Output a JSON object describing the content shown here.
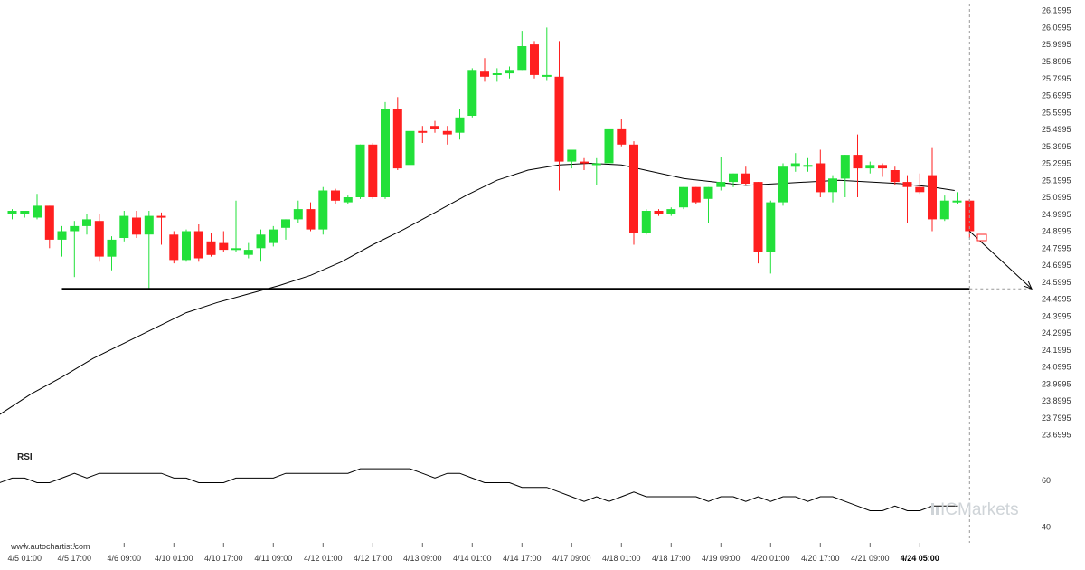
{
  "chart_data": {
    "type": "candlestick",
    "y_ticks": [
      "26.1995",
      "26.0995",
      "25.9995",
      "25.8995",
      "25.7995",
      "25.6995",
      "25.5995",
      "25.4995",
      "25.3995",
      "25.2995",
      "25.1995",
      "25.0995",
      "24.9995",
      "24.8995",
      "24.7995",
      "24.6995",
      "24.5995",
      "24.4995",
      "24.3995",
      "24.2995",
      "24.1995",
      "24.0995",
      "23.9995",
      "23.8995",
      "23.7995",
      "23.6995"
    ],
    "ylim": [
      23.65,
      26.23
    ],
    "x_ticks": [
      {
        "label": "4/5 01:00",
        "index": 1
      },
      {
        "label": "4/5 17:00",
        "index": 5
      },
      {
        "label": "4/6 09:00",
        "index": 9
      },
      {
        "label": "4/10 01:00",
        "index": 13
      },
      {
        "label": "4/10 17:00",
        "index": 17
      },
      {
        "label": "4/11 09:00",
        "index": 21
      },
      {
        "label": "4/12 01:00",
        "index": 25
      },
      {
        "label": "4/12 17:00",
        "index": 29
      },
      {
        "label": "4/13 09:00",
        "index": 33
      },
      {
        "label": "4/14 01:00",
        "index": 37
      },
      {
        "label": "4/14 17:00",
        "index": 41
      },
      {
        "label": "4/17 09:00",
        "index": 45
      },
      {
        "label": "4/18 01:00",
        "index": 49
      },
      {
        "label": "4/18 17:00",
        "index": 53
      },
      {
        "label": "4/19 09:00",
        "index": 57
      },
      {
        "label": "4/20 01:00",
        "index": 61
      },
      {
        "label": "4/20 17:00",
        "index": 65
      },
      {
        "label": "4/21 09:00",
        "index": 69
      },
      {
        "label": "4/24 05:00",
        "index": 73,
        "bold": true
      }
    ],
    "candles": [
      {
        "o": 25.0,
        "h": 25.03,
        "l": 24.97,
        "c": 25.02
      },
      {
        "o": 25.0,
        "h": 25.02,
        "l": 24.98,
        "c": 25.02
      },
      {
        "o": 24.98,
        "h": 25.12,
        "l": 24.97,
        "c": 25.05
      },
      {
        "o": 25.05,
        "h": 25.05,
        "l": 24.8,
        "c": 24.85
      },
      {
        "o": 24.85,
        "h": 24.93,
        "l": 24.75,
        "c": 24.9
      },
      {
        "o": 24.9,
        "h": 24.96,
        "l": 24.63,
        "c": 24.93
      },
      {
        "o": 24.93,
        "h": 25.0,
        "l": 24.88,
        "c": 24.97
      },
      {
        "o": 24.96,
        "h": 25.0,
        "l": 24.72,
        "c": 24.75
      },
      {
        "o": 24.75,
        "h": 24.87,
        "l": 24.67,
        "c": 24.85
      },
      {
        "o": 24.86,
        "h": 25.02,
        "l": 24.84,
        "c": 24.99
      },
      {
        "o": 24.98,
        "h": 25.02,
        "l": 24.86,
        "c": 24.88
      },
      {
        "o": 24.88,
        "h": 25.02,
        "l": 24.56,
        "c": 24.99
      },
      {
        "o": 24.99,
        "h": 25.01,
        "l": 24.82,
        "c": 24.98
      },
      {
        "o": 24.88,
        "h": 24.9,
        "l": 24.71,
        "c": 24.73
      },
      {
        "o": 24.73,
        "h": 24.91,
        "l": 24.72,
        "c": 24.9
      },
      {
        "o": 24.9,
        "h": 24.94,
        "l": 24.72,
        "c": 24.74
      },
      {
        "o": 24.84,
        "h": 24.89,
        "l": 24.75,
        "c": 24.76
      },
      {
        "o": 24.83,
        "h": 24.9,
        "l": 24.78,
        "c": 24.79
      },
      {
        "o": 24.8,
        "h": 25.08,
        "l": 24.78,
        "c": 24.8
      },
      {
        "o": 24.76,
        "h": 24.83,
        "l": 24.74,
        "c": 24.79
      },
      {
        "o": 24.8,
        "h": 24.91,
        "l": 24.72,
        "c": 24.88
      },
      {
        "o": 24.83,
        "h": 24.93,
        "l": 24.81,
        "c": 24.91
      },
      {
        "o": 24.92,
        "h": 24.97,
        "l": 24.85,
        "c": 24.97
      },
      {
        "o": 24.97,
        "h": 25.08,
        "l": 24.95,
        "c": 25.03
      },
      {
        "o": 25.03,
        "h": 25.07,
        "l": 24.9,
        "c": 24.91
      },
      {
        "o": 24.91,
        "h": 25.16,
        "l": 24.88,
        "c": 25.14
      },
      {
        "o": 25.14,
        "h": 25.15,
        "l": 25.06,
        "c": 25.08
      },
      {
        "o": 25.07,
        "h": 25.11,
        "l": 25.06,
        "c": 25.1
      },
      {
        "o": 25.1,
        "h": 25.41,
        "l": 25.09,
        "c": 25.41
      },
      {
        "o": 25.41,
        "h": 25.42,
        "l": 25.09,
        "c": 25.1
      },
      {
        "o": 25.1,
        "h": 25.66,
        "l": 25.09,
        "c": 25.62
      },
      {
        "o": 25.62,
        "h": 25.69,
        "l": 25.26,
        "c": 25.27
      },
      {
        "o": 25.29,
        "h": 25.54,
        "l": 25.28,
        "c": 25.49
      },
      {
        "o": 25.49,
        "h": 25.52,
        "l": 25.42,
        "c": 25.48
      },
      {
        "o": 25.52,
        "h": 25.55,
        "l": 25.48,
        "c": 25.5
      },
      {
        "o": 25.49,
        "h": 25.52,
        "l": 25.41,
        "c": 25.47
      },
      {
        "o": 25.48,
        "h": 25.62,
        "l": 25.44,
        "c": 25.57
      },
      {
        "o": 25.58,
        "h": 25.86,
        "l": 25.57,
        "c": 25.85
      },
      {
        "o": 25.84,
        "h": 25.92,
        "l": 25.78,
        "c": 25.81
      },
      {
        "o": 25.83,
        "h": 25.86,
        "l": 25.78,
        "c": 25.83
      },
      {
        "o": 25.83,
        "h": 25.87,
        "l": 25.8,
        "c": 25.85
      },
      {
        "o": 25.85,
        "h": 26.08,
        "l": 25.85,
        "c": 25.99
      },
      {
        "o": 26.0,
        "h": 26.02,
        "l": 25.8,
        "c": 25.82
      },
      {
        "o": 25.82,
        "h": 26.1,
        "l": 25.79,
        "c": 25.82
      },
      {
        "o": 25.81,
        "h": 26.02,
        "l": 25.14,
        "c": 25.31
      },
      {
        "o": 25.31,
        "h": 25.37,
        "l": 25.27,
        "c": 25.38
      },
      {
        "o": 25.31,
        "h": 25.33,
        "l": 25.26,
        "c": 25.3
      },
      {
        "o": 25.3,
        "h": 25.33,
        "l": 25.17,
        "c": 25.3
      },
      {
        "o": 25.3,
        "h": 25.59,
        "l": 25.28,
        "c": 25.5
      },
      {
        "o": 25.5,
        "h": 25.56,
        "l": 25.4,
        "c": 25.41
      },
      {
        "o": 25.41,
        "h": 25.43,
        "l": 24.82,
        "c": 24.89
      },
      {
        "o": 24.89,
        "h": 25.03,
        "l": 24.88,
        "c": 25.02
      },
      {
        "o": 25.02,
        "h": 25.03,
        "l": 24.99,
        "c": 25.0
      },
      {
        "o": 25.0,
        "h": 25.04,
        "l": 24.99,
        "c": 25.03
      },
      {
        "o": 25.04,
        "h": 25.16,
        "l": 25.03,
        "c": 25.16
      },
      {
        "o": 25.16,
        "h": 25.16,
        "l": 25.06,
        "c": 25.07
      },
      {
        "o": 25.09,
        "h": 25.16,
        "l": 24.95,
        "c": 25.16
      },
      {
        "o": 25.16,
        "h": 25.34,
        "l": 25.14,
        "c": 25.19
      },
      {
        "o": 25.19,
        "h": 25.24,
        "l": 25.16,
        "c": 25.24
      },
      {
        "o": 25.24,
        "h": 25.28,
        "l": 25.17,
        "c": 25.18
      },
      {
        "o": 25.19,
        "h": 25.19,
        "l": 24.71,
        "c": 24.78
      },
      {
        "o": 24.78,
        "h": 25.08,
        "l": 24.65,
        "c": 25.07
      },
      {
        "o": 25.07,
        "h": 25.3,
        "l": 25.05,
        "c": 25.28
      },
      {
        "o": 25.28,
        "h": 25.36,
        "l": 25.25,
        "c": 25.3
      },
      {
        "o": 25.28,
        "h": 25.33,
        "l": 25.25,
        "c": 25.29
      },
      {
        "o": 25.3,
        "h": 25.38,
        "l": 25.1,
        "c": 25.13
      },
      {
        "o": 25.13,
        "h": 25.23,
        "l": 25.07,
        "c": 25.21
      },
      {
        "o": 25.21,
        "h": 25.35,
        "l": 25.1,
        "c": 25.35
      },
      {
        "o": 25.35,
        "h": 25.47,
        "l": 25.1,
        "c": 25.27
      },
      {
        "o": 25.27,
        "h": 25.31,
        "l": 25.24,
        "c": 25.29
      },
      {
        "o": 25.29,
        "h": 25.3,
        "l": 25.22,
        "c": 25.27
      },
      {
        "o": 25.26,
        "h": 25.28,
        "l": 25.17,
        "c": 25.19
      },
      {
        "o": 25.19,
        "h": 25.23,
        "l": 24.95,
        "c": 25.16
      },
      {
        "o": 25.16,
        "h": 25.24,
        "l": 25.12,
        "c": 25.13
      },
      {
        "o": 25.23,
        "h": 25.39,
        "l": 24.9,
        "c": 24.97
      },
      {
        "o": 24.97,
        "h": 25.11,
        "l": 24.96,
        "c": 25.08
      },
      {
        "o": 25.08,
        "h": 25.13,
        "l": 25.06,
        "c": 25.08
      },
      {
        "o": 25.08,
        "h": 25.09,
        "l": 24.86,
        "c": 24.9
      }
    ],
    "moving_average": [
      {
        "i": -1.0,
        "v": 23.82
      },
      {
        "i": 1.5,
        "v": 23.94
      },
      {
        "i": 4.0,
        "v": 24.04
      },
      {
        "i": 6.5,
        "v": 24.15
      },
      {
        "i": 9.0,
        "v": 24.24
      },
      {
        "i": 11.5,
        "v": 24.33
      },
      {
        "i": 14.0,
        "v": 24.42
      },
      {
        "i": 16.5,
        "v": 24.48
      },
      {
        "i": 19.0,
        "v": 24.53
      },
      {
        "i": 21.5,
        "v": 24.58
      },
      {
        "i": 24.0,
        "v": 24.64
      },
      {
        "i": 26.5,
        "v": 24.72
      },
      {
        "i": 29.0,
        "v": 24.82
      },
      {
        "i": 31.5,
        "v": 24.91
      },
      {
        "i": 34.0,
        "v": 25.01
      },
      {
        "i": 36.5,
        "v": 25.11
      },
      {
        "i": 39.0,
        "v": 25.2
      },
      {
        "i": 41.5,
        "v": 25.26
      },
      {
        "i": 44.0,
        "v": 25.29
      },
      {
        "i": 46.5,
        "v": 25.3
      },
      {
        "i": 49.0,
        "v": 25.29
      },
      {
        "i": 51.5,
        "v": 25.25
      },
      {
        "i": 54.0,
        "v": 25.21
      },
      {
        "i": 56.5,
        "v": 25.19
      },
      {
        "i": 59.0,
        "v": 25.17
      },
      {
        "i": 61.5,
        "v": 25.18
      },
      {
        "i": 64.0,
        "v": 25.19
      },
      {
        "i": 66.5,
        "v": 25.2
      },
      {
        "i": 69.0,
        "v": 25.19
      },
      {
        "i": 71.5,
        "v": 25.18
      },
      {
        "i": 74.0,
        "v": 25.16
      },
      {
        "i": 75.8,
        "v": 25.14
      }
    ],
    "support_level": 24.56,
    "support_start_index": 4,
    "forecast": {
      "end_index": 82,
      "end_value": 24.56
    },
    "target_box_index": 78,
    "target_box_value": 24.86,
    "rsi": {
      "title": "RSI",
      "ticks": [
        "60",
        "40"
      ],
      "ylim": [
        34,
        72
      ],
      "values": [
        59,
        61,
        61,
        59,
        59,
        61,
        63,
        61,
        63,
        63,
        63,
        63,
        63,
        63,
        61,
        61,
        59,
        59,
        59,
        61,
        61,
        61,
        61,
        63,
        63,
        63,
        63,
        63,
        63,
        65,
        65,
        65,
        65,
        65,
        63,
        61,
        63,
        63,
        61,
        59,
        59,
        59,
        57,
        57,
        57,
        55,
        53,
        51,
        53,
        51,
        53,
        55,
        53,
        53,
        53,
        53,
        53,
        51,
        53,
        53,
        51,
        53,
        51,
        53,
        53,
        51,
        53,
        53,
        51,
        49,
        47,
        47,
        49,
        47,
        47,
        49,
        49,
        49
      ]
    }
  },
  "footer": {
    "credit": "www.autochartist.com",
    "brand_prefix": "IC",
    "brand_suffix": "Markets"
  }
}
